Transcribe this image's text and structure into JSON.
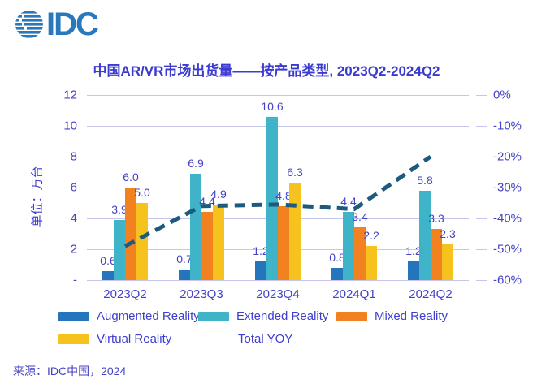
{
  "logo": {
    "text": "IDC"
  },
  "title": "中国AR/VR市场出货量——按产品类型, 2023Q2-2024Q2",
  "footer": "来源：IDC中国，2024",
  "colors": {
    "logo_blue": "#2878bb",
    "title_text": "#3c3bd0",
    "axis_text": "#4442c6",
    "value_text": "#4442c6",
    "legend_text": "#3e3dcd",
    "grid": "#c6c5ec",
    "augmented": "#2575bc",
    "extended": "#3fb3c8",
    "mixed": "#f28220",
    "virtual": "#f5c21e",
    "yoy_line": "#1d5a7d"
  },
  "chart_data": {
    "type": "bar",
    "title": "中国AR/VR市场出货量——按产品类型, 2023Q2-2024Q2",
    "unit_label": "单位：万台",
    "categories": [
      "2023Q2",
      "2023Q3",
      "2023Q4",
      "2024Q1",
      "2024Q2"
    ],
    "series": [
      {
        "name": "Augmented Reality",
        "color": "#2575bc",
        "values": [
          0.6,
          0.7,
          1.2,
          0.8,
          1.2
        ]
      },
      {
        "name": "Extended Reality",
        "color": "#3fb3c8",
        "values": [
          3.9,
          6.9,
          10.6,
          4.4,
          5.8
        ]
      },
      {
        "name": "Mixed Reality",
        "color": "#f28220",
        "values": [
          6.0,
          4.4,
          4.8,
          3.4,
          3.3
        ]
      },
      {
        "name": "Virtual Reality",
        "color": "#f5c21e",
        "values": [
          5.0,
          4.9,
          6.3,
          2.2,
          2.3
        ]
      }
    ],
    "line_series": {
      "name": "Total YOY",
      "type": "line",
      "style": "dashed",
      "color": "#1d5a7d",
      "axis": "right",
      "values_pct": [
        -49,
        -36,
        -35.5,
        -37,
        -20
      ]
    },
    "left_axis": {
      "min": 0,
      "max": 12,
      "step": 2,
      "labels": [
        "12",
        "10",
        "8",
        "6",
        "4",
        "2",
        "-"
      ]
    },
    "right_axis": {
      "min": -60,
      "max": 0,
      "step": 10,
      "labels": [
        "0%",
        "-10%",
        "-20%",
        "-30%",
        "-40%",
        "-50%",
        "-60%"
      ]
    },
    "grid": "horizontal",
    "legend_position": "bottom"
  }
}
